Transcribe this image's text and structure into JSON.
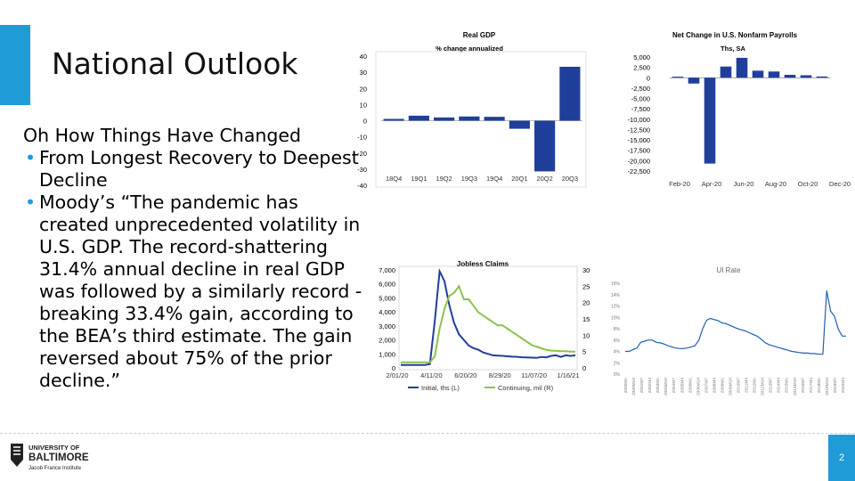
{
  "slide": {
    "title": "National Outlook",
    "subhead": "Oh How Things Have Changed",
    "bullets": [
      "From Longest Recovery to Deepest Decline",
      "Moody’s “The pandemic has created unprecedented volatility in U.S. GDP. The record-shattering 31.4% annual decline in real GDP was followed by a similarly record -breaking 33.4% gain, according to the BEA’s third estimate. The gain reversed about 75% of the prior decline.”"
    ],
    "page_number": "2",
    "logo": {
      "line1": "UNIVERSITY OF",
      "line2": "BALTIMORE",
      "line3": "Jacob France Institute"
    }
  },
  "chart_data": [
    {
      "type": "bar",
      "title": "Real GDP",
      "subtitle": "% change annualized",
      "categories": [
        "18Q4",
        "19Q1",
        "19Q2",
        "19Q3",
        "19Q4",
        "20Q1",
        "20Q2",
        "20Q3"
      ],
      "values": [
        1.1,
        3.1,
        2.0,
        2.6,
        2.4,
        -5.0,
        -31.4,
        33.4
      ],
      "yticks": [
        "40",
        "30",
        "20",
        "10",
        "0",
        "-10",
        "-20",
        "-30",
        "-40"
      ],
      "ylim": [
        -40,
        40
      ],
      "color": "#1f3f9a"
    },
    {
      "type": "bar",
      "title": "Net Change in U.S. Nonfarm Payrolls",
      "subtitle": "Ths, SA",
      "x_labels": [
        "Feb-20",
        "Apr-20",
        "Jun-20",
        "Aug-20",
        "Oct-20",
        "Dec-20"
      ],
      "values": [
        250,
        -1400,
        -20700,
        2700,
        4800,
        1700,
        1500,
        700,
        600,
        300
      ],
      "yticks": [
        "5,000",
        "2,500",
        "0",
        "-2,500",
        "-5,000",
        "-7,500",
        "-10,000",
        "-12,500",
        "-15,000",
        "-17,500",
        "-20,000",
        "-22,500"
      ],
      "ylim": [
        -22500,
        5000
      ],
      "color": "#1f3f9a"
    },
    {
      "type": "line",
      "title": "Jobless Claims",
      "x_labels": [
        "2/01/20",
        "4/11/20",
        "6/20/20",
        "8/29/20",
        "11/07/20",
        "1/16/21"
      ],
      "yticks_left": [
        "7,000",
        "6,000",
        "5,000",
        "4,000",
        "3,000",
        "2,000",
        "1,000",
        "0"
      ],
      "yticks_right": [
        "30",
        "25",
        "20",
        "15",
        "10",
        "5",
        "0"
      ],
      "legend": [
        "Initial, ths (L)",
        "Continuing, mil (R)"
      ],
      "series": [
        {
          "name": "Initial, ths (L)",
          "axis": "left",
          "color": "#1f3f9a",
          "values": [
            210,
            210,
            210,
            210,
            210,
            210,
            280,
            3300,
            6900,
            6200,
            4500,
            3200,
            2400,
            2000,
            1600,
            1400,
            1300,
            1100,
            1000,
            900,
            880,
            860,
            830,
            800,
            790,
            760,
            750,
            730,
            710,
            780,
            750,
            860,
            900,
            780,
            900,
            850,
            900
          ]
        },
        {
          "name": "Continuing, mil (R)",
          "axis": "right",
          "color": "#8bc34a",
          "values": [
            1.7,
            1.7,
            1.7,
            1.7,
            1.7,
            1.7,
            1.7,
            3.5,
            12,
            18,
            22,
            23,
            25,
            21,
            21,
            19,
            17,
            16,
            15,
            14,
            13,
            13,
            12,
            11,
            10,
            9,
            8,
            7,
            6.5,
            6,
            5.5,
            5.3,
            5.2,
            5.1,
            5.1,
            5.0,
            5.0
          ]
        }
      ]
    },
    {
      "type": "line",
      "title": "UI Rate",
      "yticks": [
        "16%",
        "14%",
        "12%",
        "10%",
        "8%",
        "6%",
        "4%",
        "2%",
        "0%"
      ],
      "x_labels": [
        "2000M1",
        "2000M10",
        "2001M7",
        "2002M4",
        "2003M1",
        "2003M10",
        "2004M7",
        "2005M4",
        "2006M1",
        "2006M10",
        "2007M7",
        "2008M4",
        "2009M1",
        "2009M10",
        "2010M7",
        "2011M4",
        "2012M1",
        "2012M10",
        "2013M7",
        "2014M4",
        "2015M1",
        "2015M10",
        "2016M7",
        "2017M4",
        "2018M1",
        "2018M10",
        "2019M7",
        "2020M4"
      ],
      "series": [
        {
          "name": "UI Rate",
          "color": "#1f5fb0",
          "values": [
            4.0,
            4.0,
            4.3,
            4.6,
            5.6,
            5.8,
            6.0,
            6.0,
            5.6,
            5.5,
            5.3,
            5.0,
            4.8,
            4.6,
            4.5,
            4.5,
            4.6,
            4.8,
            5.0,
            6.0,
            8.0,
            9.5,
            9.8,
            9.6,
            9.4,
            9.0,
            8.9,
            8.6,
            8.3,
            8.0,
            7.8,
            7.6,
            7.3,
            7.0,
            6.7,
            6.2,
            5.6,
            5.2,
            5.0,
            4.8,
            4.6,
            4.4,
            4.2,
            4.0,
            3.9,
            3.8,
            3.7,
            3.7,
            3.6,
            3.6,
            3.5,
            3.5,
            14.7,
            11.1,
            10.2,
            7.9,
            6.7,
            6.7
          ]
        }
      ]
    }
  ]
}
